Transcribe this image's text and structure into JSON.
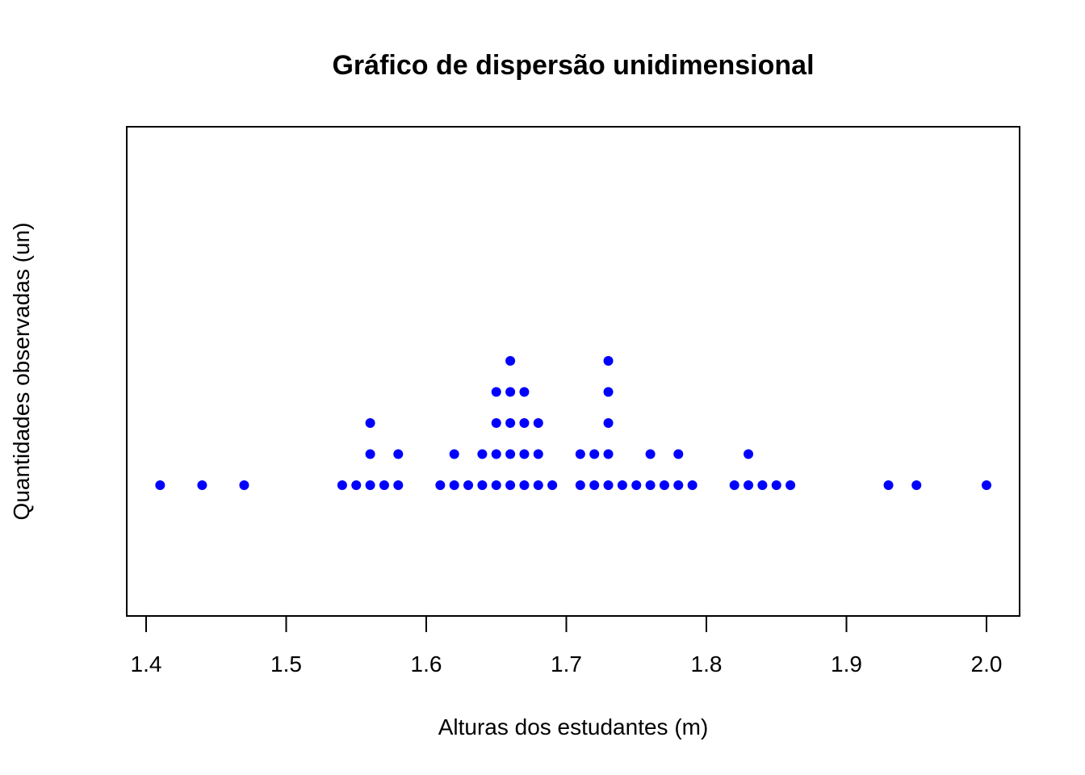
{
  "chart_data": {
    "type": "scatter",
    "subtype": "stacked-stripchart",
    "title": "Gráfico de dispersão unidimensional",
    "xlabel": "Alturas dos estudantes (m)",
    "ylabel": "Quantidades observadas (un)",
    "xlim": [
      1.386,
      2.024
    ],
    "x_ticks": [
      "1.4",
      "1.5",
      "1.6",
      "1.7",
      "1.8",
      "1.9",
      "2.0"
    ],
    "x_tick_values": [
      1.4,
      1.5,
      1.6,
      1.7,
      1.8,
      1.9,
      2.0
    ],
    "point_color": "#0000ff",
    "grid": false,
    "legend": "none",
    "points": [
      {
        "x": 1.41,
        "count": 1
      },
      {
        "x": 1.44,
        "count": 1
      },
      {
        "x": 1.47,
        "count": 1
      },
      {
        "x": 1.54,
        "count": 1
      },
      {
        "x": 1.55,
        "count": 1
      },
      {
        "x": 1.56,
        "count": 3
      },
      {
        "x": 1.57,
        "count": 1
      },
      {
        "x": 1.58,
        "count": 2
      },
      {
        "x": 1.61,
        "count": 1
      },
      {
        "x": 1.62,
        "count": 2
      },
      {
        "x": 1.63,
        "count": 1
      },
      {
        "x": 1.64,
        "count": 2
      },
      {
        "x": 1.65,
        "count": 4
      },
      {
        "x": 1.66,
        "count": 5
      },
      {
        "x": 1.67,
        "count": 4
      },
      {
        "x": 1.68,
        "count": 3
      },
      {
        "x": 1.69,
        "count": 1
      },
      {
        "x": 1.71,
        "count": 2
      },
      {
        "x": 1.72,
        "count": 2
      },
      {
        "x": 1.73,
        "count": 5
      },
      {
        "x": 1.74,
        "count": 1
      },
      {
        "x": 1.75,
        "count": 1
      },
      {
        "x": 1.76,
        "count": 2
      },
      {
        "x": 1.77,
        "count": 1
      },
      {
        "x": 1.78,
        "count": 2
      },
      {
        "x": 1.79,
        "count": 1
      },
      {
        "x": 1.82,
        "count": 1
      },
      {
        "x": 1.83,
        "count": 2
      },
      {
        "x": 1.84,
        "count": 1
      },
      {
        "x": 1.85,
        "count": 1
      },
      {
        "x": 1.86,
        "count": 1
      },
      {
        "x": 1.93,
        "count": 1
      },
      {
        "x": 1.95,
        "count": 1
      },
      {
        "x": 2.0,
        "count": 1
      }
    ]
  }
}
